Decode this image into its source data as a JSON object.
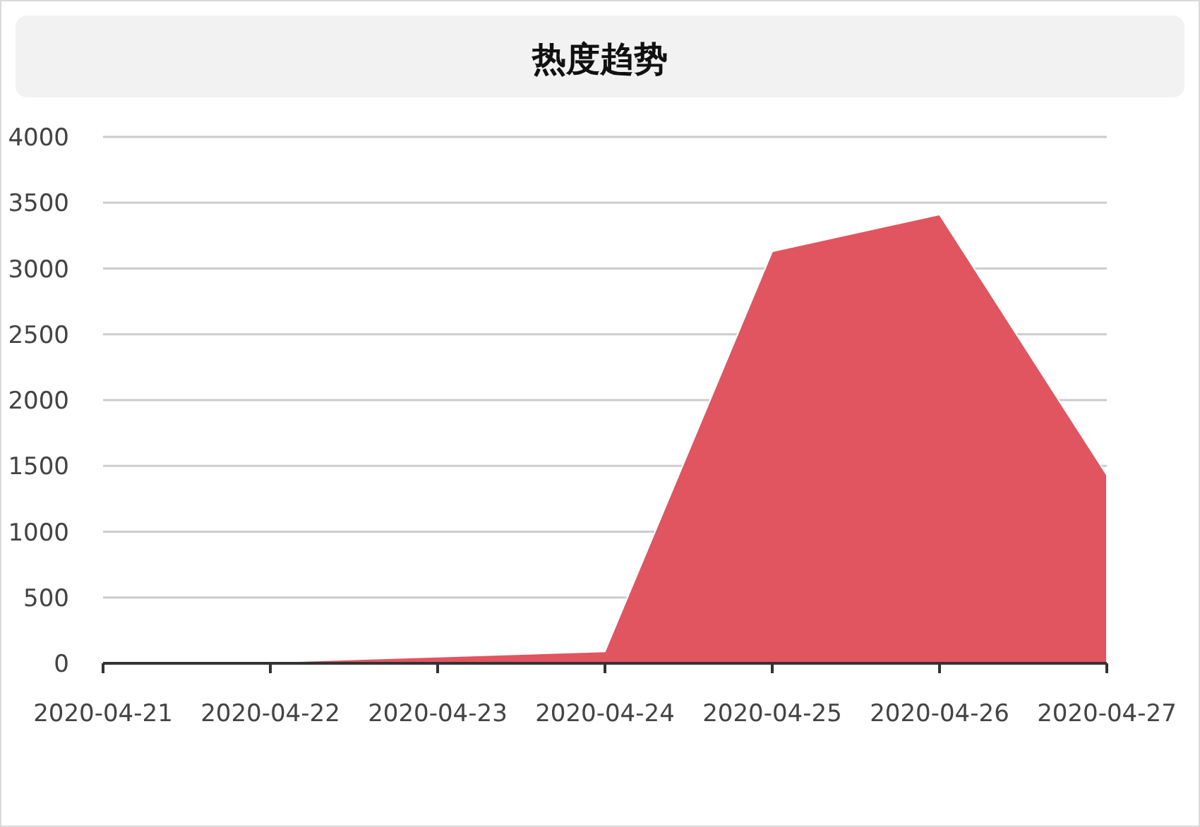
{
  "chart_data": {
    "type": "area",
    "title": "热度趋势",
    "categories": [
      "2020-04-21",
      "2020-04-22",
      "2020-04-23",
      "2020-04-24",
      "2020-04-25",
      "2020-04-26",
      "2020-04-27"
    ],
    "series": [
      {
        "color": "#e05560",
        "values": [
          0,
          10,
          50,
          90,
          3130,
          3410,
          1430
        ]
      }
    ],
    "ylim": [
      0,
      4000
    ],
    "yticks": [
      0,
      500,
      1000,
      1500,
      2000,
      2500,
      3000,
      3500,
      4000
    ],
    "grid": "y"
  }
}
